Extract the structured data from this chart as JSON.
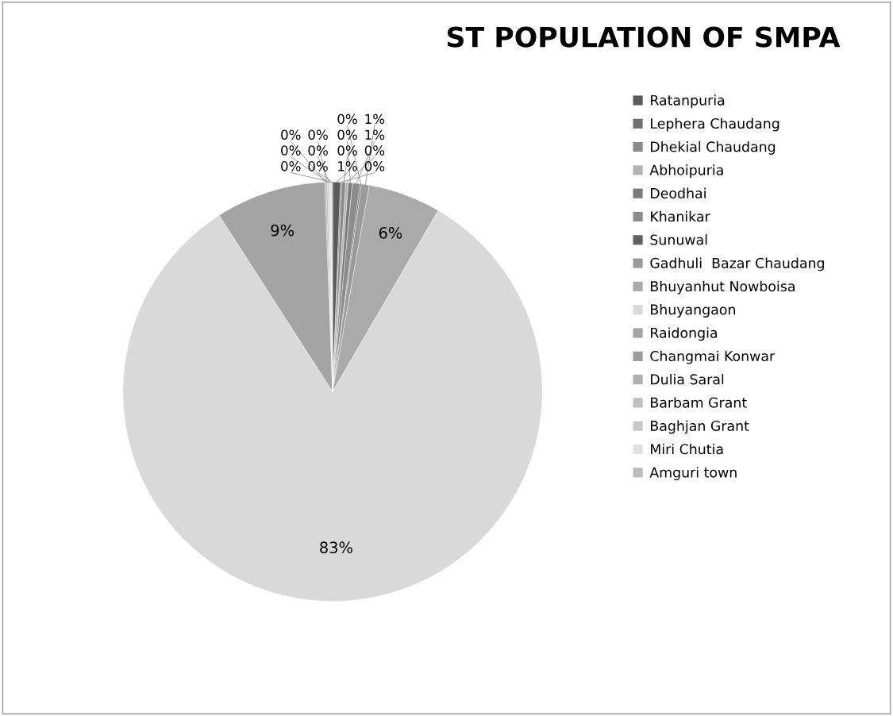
{
  "chart_data": {
    "type": "pie",
    "title": "ST POPULATION OF SMPA",
    "categories": [
      "Ratanpuria",
      "Lephera Chaudang",
      "Dhekial Chaudang",
      "Abhoipuria",
      "Deodhai",
      "Khanikar",
      "Sunuwal",
      "Gadhuli  Bazar Chaudang",
      "Bhuyanhut Nowboisa",
      "Bhuyangaon",
      "Raidongia",
      "Changmai Konwar",
      "Dulia Saral",
      "Barbam Grant",
      "Baghjan Grant",
      "Miri Chutia",
      "Amguri town"
    ],
    "values": [
      0.6,
      0.1,
      0.3,
      0.2,
      0.3,
      0.6,
      0.1,
      0.6,
      5.6,
      82.5,
      8.5,
      0.1,
      0.1,
      0.1,
      0.1,
      0.1,
      0.1
    ],
    "value_labels": [
      "1%",
      "0%",
      "0%",
      "0%",
      "0%",
      "1%",
      "0%",
      "1%",
      "6%",
      "83%",
      "9%",
      "0%",
      "0%",
      "0%",
      "0%",
      "0%",
      "0%"
    ],
    "colors": [
      "#5a5a5a",
      "#707070",
      "#8a8a8a",
      "#b4b4b4",
      "#7a7a7a",
      "#8c8c8c",
      "#606060",
      "#9a9a9a",
      "#aaaaaa",
      "#d9d9d9",
      "#a4a4a4",
      "#9c9c9c",
      "#b0b0b0",
      "#c0c0c0",
      "#c8c8c8",
      "#e0e0e0",
      "#bcbcbc"
    ],
    "legend": "right"
  }
}
